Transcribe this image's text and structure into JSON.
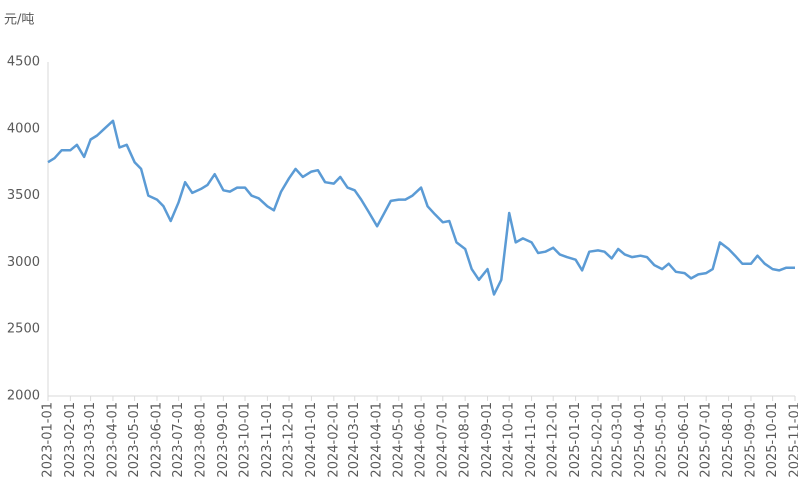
{
  "chart_data": {
    "type": "line",
    "y_label": "元/吨",
    "x": [
      "2023-01-01",
      "2023-01-10",
      "2023-01-20",
      "2023-02-01",
      "2023-02-10",
      "2023-02-20",
      "2023-03-01",
      "2023-03-10",
      "2023-03-20",
      "2023-04-01",
      "2023-04-10",
      "2023-04-20",
      "2023-05-01",
      "2023-05-10",
      "2023-05-20",
      "2023-06-01",
      "2023-06-10",
      "2023-06-20",
      "2023-07-01",
      "2023-07-10",
      "2023-07-20",
      "2023-08-01",
      "2023-08-10",
      "2023-08-20",
      "2023-09-01",
      "2023-09-10",
      "2023-09-20",
      "2023-10-01",
      "2023-10-10",
      "2023-10-20",
      "2023-11-01",
      "2023-11-10",
      "2023-11-20",
      "2023-12-01",
      "2023-12-10",
      "2023-12-20",
      "2024-01-01",
      "2024-01-10",
      "2024-01-20",
      "2024-02-01",
      "2024-02-10",
      "2024-02-20",
      "2024-03-01",
      "2024-03-10",
      "2024-03-20",
      "2024-04-01",
      "2024-04-10",
      "2024-04-20",
      "2024-05-01",
      "2024-05-10",
      "2024-05-20",
      "2024-06-01",
      "2024-06-10",
      "2024-06-20",
      "2024-07-01",
      "2024-07-10",
      "2024-07-20",
      "2024-08-01",
      "2024-08-10",
      "2024-08-20",
      "2024-09-01",
      "2024-09-10",
      "2024-09-20",
      "2024-10-01",
      "2024-10-10",
      "2024-10-20",
      "2024-11-01",
      "2024-11-10",
      "2024-11-20",
      "2024-12-01",
      "2024-12-10",
      "2024-12-20",
      "2025-01-01",
      "2025-01-10",
      "2025-01-20",
      "2025-02-01",
      "2025-02-10",
      "2025-02-20",
      "2025-03-01",
      "2025-03-10",
      "2025-03-20",
      "2025-04-01",
      "2025-04-10",
      "2025-04-20",
      "2025-05-01",
      "2025-05-10",
      "2025-05-20",
      "2025-06-01",
      "2025-06-10",
      "2025-06-20",
      "2025-07-01",
      "2025-07-10",
      "2025-07-20",
      "2025-08-01",
      "2025-08-10",
      "2025-08-20",
      "2025-09-01",
      "2025-09-10",
      "2025-09-20",
      "2025-10-01",
      "2025-10-10",
      "2025-10-20",
      "2025-11-01"
    ],
    "values": [
      3750,
      3780,
      3840,
      3840,
      3880,
      3790,
      3920,
      3950,
      4000,
      4060,
      3860,
      3880,
      3750,
      3700,
      3500,
      3470,
      3420,
      3310,
      3450,
      3600,
      3520,
      3550,
      3580,
      3660,
      3540,
      3530,
      3560,
      3560,
      3500,
      3480,
      3420,
      3390,
      3530,
      3630,
      3700,
      3640,
      3680,
      3690,
      3600,
      3590,
      3640,
      3560,
      3540,
      3470,
      3380,
      3270,
      3360,
      3460,
      3470,
      3470,
      3500,
      3560,
      3420,
      3360,
      3300,
      3310,
      3150,
      3100,
      2950,
      2870,
      2950,
      2760,
      2870,
      3370,
      3150,
      3180,
      3150,
      3070,
      3080,
      3110,
      3060,
      3040,
      3020,
      2940,
      3080,
      3090,
      3080,
      3030,
      3100,
      3060,
      3040,
      3050,
      3040,
      2980,
      2950,
      2990,
      2930,
      2920,
      2880,
      2910,
      2920,
      2950,
      3150,
      3100,
      3050,
      2990,
      2990,
      3050,
      2990,
      2950,
      2940,
      2960,
      2960
    ],
    "color": "#5b9bd5",
    "xlim": [
      "2023-01-01",
      "2025-11-01"
    ],
    "xticks": [
      "2023-01-01",
      "2023-02-01",
      "2023-03-01",
      "2023-04-01",
      "2023-05-01",
      "2023-06-01",
      "2023-07-01",
      "2023-08-01",
      "2023-09-01",
      "2023-10-01",
      "2023-11-01",
      "2023-12-01",
      "2024-01-01",
      "2024-02-01",
      "2024-03-01",
      "2024-04-01",
      "2024-05-01",
      "2024-06-01",
      "2024-07-01",
      "2024-08-01",
      "2024-09-01",
      "2024-10-01",
      "2024-11-01",
      "2024-12-01",
      "2025-01-01",
      "2025-02-01",
      "2025-03-01",
      "2025-04-01",
      "2025-05-01",
      "2025-06-01",
      "2025-07-01",
      "2025-08-01",
      "2025-09-01",
      "2025-10-01",
      "2025-11-01"
    ],
    "ylim": [
      2000,
      4500
    ],
    "yticks": [
      2000,
      2500,
      3000,
      3500,
      4000,
      4500
    ],
    "grid": false
  }
}
